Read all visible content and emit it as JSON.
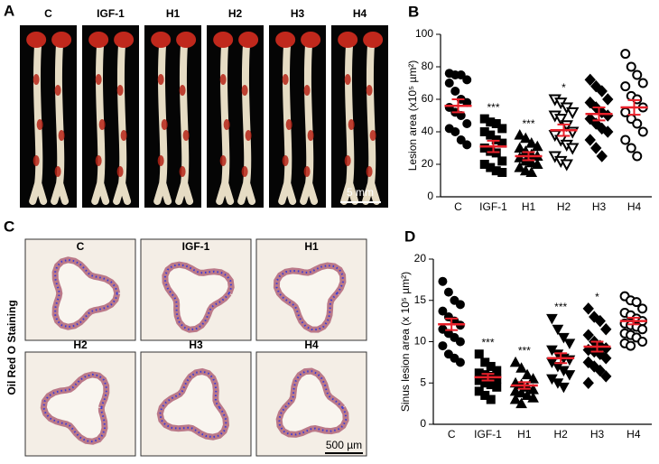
{
  "panels": {
    "A": {
      "label": "A",
      "categories": [
        "C",
        "IGF-1",
        "H1",
        "H2",
        "H3",
        "H4"
      ],
      "scale_bar": "5 mm"
    },
    "C": {
      "label": "C",
      "side_label": "Oil Red O Staining",
      "categories": [
        "C",
        "IGF-1",
        "H1",
        "H2",
        "H3",
        "H4"
      ],
      "scale_bar": "500 µm"
    }
  },
  "chart_data": [
    {
      "type": "dot",
      "panel_label": "B",
      "ylabel": "Lesion area (x10⁵ µm²)",
      "categories": [
        "C",
        "IGF-1",
        "H1",
        "H2",
        "H3",
        "H4"
      ],
      "markers": [
        "circle",
        "square",
        "triangle-up",
        "triangle-down",
        "diamond",
        "circle"
      ],
      "filled": [
        true,
        true,
        true,
        false,
        true,
        false
      ],
      "points": [
        [
          76,
          75,
          75,
          72,
          70,
          65,
          60,
          58,
          55,
          52,
          50,
          45,
          42,
          40,
          35,
          32
        ],
        [
          48,
          46,
          45,
          42,
          40,
          38,
          35,
          33,
          30,
          28,
          27,
          22,
          20,
          18,
          16,
          15
        ],
        [
          38,
          36,
          33,
          31,
          30,
          28,
          26,
          25,
          24,
          22,
          21,
          20,
          18,
          16,
          15
        ],
        [
          60,
          58,
          55,
          52,
          50,
          48,
          44,
          40,
          38,
          35,
          32,
          30,
          25,
          22,
          20
        ],
        [
          72,
          68,
          65,
          60,
          58,
          55,
          52,
          50,
          48,
          45,
          42,
          40,
          35,
          30,
          25
        ],
        [
          88,
          80,
          75,
          70,
          68,
          62,
          60,
          55,
          52,
          48,
          45,
          40,
          35,
          30,
          25
        ]
      ],
      "means": [
        56,
        31,
        25,
        41,
        51,
        55
      ],
      "sems": [
        4,
        3.5,
        2.5,
        3.5,
        4,
        4.5
      ],
      "significance": [
        null,
        "***",
        "***",
        "*",
        null,
        null
      ],
      "point_color": "#000000",
      "mean_color": "#e8202a",
      "ylim": [
        0,
        100
      ],
      "yticks": [
        0,
        20,
        40,
        60,
        80,
        100
      ]
    },
    {
      "type": "dot",
      "panel_label": "D",
      "ylabel": "Sinus lesion area (x 10⁵ µm²)",
      "categories": [
        "C",
        "IGF-1",
        "H1",
        "H2",
        "H3",
        "H4"
      ],
      "markers": [
        "circle",
        "square",
        "triangle-up",
        "triangle-down",
        "diamond",
        "circle"
      ],
      "filled": [
        true,
        true,
        true,
        true,
        true,
        false
      ],
      "points": [
        [
          17.3,
          16,
          15,
          14.5,
          13.7,
          13,
          12.5,
          12,
          11.5,
          11,
          10.5,
          10,
          9.5,
          8.5,
          8,
          7.5
        ],
        [
          8.5,
          7.5,
          7,
          6.5,
          6.2,
          6,
          5.8,
          5.5,
          5.3,
          5,
          4.8,
          4.5,
          4,
          3.5,
          3
        ],
        [
          7.5,
          6.8,
          6,
          5.5,
          5,
          4.8,
          4.5,
          4.2,
          4,
          3.8,
          3.5,
          3.2,
          3,
          2.5
        ],
        [
          12.8,
          11.5,
          10.5,
          9.8,
          9,
          8.5,
          8,
          7.8,
          7.5,
          7,
          6.5,
          6,
          5.5,
          5,
          4.5
        ],
        [
          14,
          13,
          12.5,
          11.5,
          10.8,
          10,
          9.5,
          9.2,
          9,
          8.8,
          8.5,
          8,
          7.5,
          7,
          6.5,
          5.8,
          5
        ],
        [
          15.5,
          15,
          14.8,
          14,
          13.5,
          13.2,
          12.8,
          12.5,
          12.2,
          12,
          11.8,
          11.5,
          11,
          10.8,
          10.5,
          10,
          9.8,
          9.5
        ]
      ],
      "means": [
        12.1,
        5.7,
        4.7,
        8.0,
        9.4,
        12.5
      ],
      "sems": [
        0.7,
        0.4,
        0.4,
        0.6,
        0.6,
        0.4
      ],
      "significance": [
        null,
        "***",
        "***",
        "***",
        "*",
        null
      ],
      "point_color": "#000000",
      "mean_color": "#e8202a",
      "ylim": [
        0,
        20
      ],
      "yticks": [
        0,
        5,
        10,
        15,
        20
      ]
    }
  ]
}
